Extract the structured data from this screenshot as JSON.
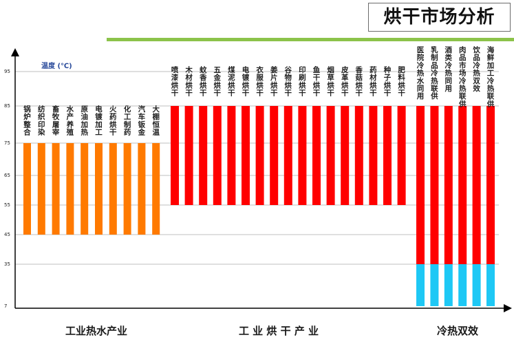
{
  "title": "烘干市场分析",
  "chart_data": {
    "type": "bar",
    "subtype": "floating-range",
    "ylabel": "温度 (℃)",
    "yticks": [
      7,
      35,
      45,
      55,
      65,
      75,
      85,
      95
    ],
    "grid": "horizontal",
    "groups": [
      {
        "name": "工业热水产业",
        "color": "#ff7a00",
        "items": [
          {
            "label": "锅炉整合",
            "min": 45,
            "max": 75
          },
          {
            "label": "纺织印染",
            "min": 45,
            "max": 75
          },
          {
            "label": "畜牧屠宰",
            "min": 45,
            "max": 75
          },
          {
            "label": "水产养殖",
            "min": 45,
            "max": 75
          },
          {
            "label": "原油加热",
            "min": 45,
            "max": 75
          },
          {
            "label": "电镀加工",
            "min": 45,
            "max": 75
          },
          {
            "label": "火药烘干",
            "min": 45,
            "max": 75
          },
          {
            "label": "化工制药",
            "min": 45,
            "max": 75
          },
          {
            "label": "汽车钣金",
            "min": 45,
            "max": 75
          },
          {
            "label": "大棚恒温",
            "min": 45,
            "max": 75
          }
        ]
      },
      {
        "name": "工 业 烘 干 产 业",
        "color": "#ff0000",
        "items": [
          {
            "label": "喷漆烘干",
            "min": 55,
            "max": 85
          },
          {
            "label": "木材烘干",
            "min": 55,
            "max": 85
          },
          {
            "label": "蚊香烘干",
            "min": 55,
            "max": 85
          },
          {
            "label": "五金烘干",
            "min": 55,
            "max": 85
          },
          {
            "label": "煤泥烘干",
            "min": 55,
            "max": 85
          },
          {
            "label": "电镀烘干",
            "min": 55,
            "max": 85
          },
          {
            "label": "衣服烘干",
            "min": 55,
            "max": 85
          },
          {
            "label": "姜片烘干",
            "min": 55,
            "max": 85
          },
          {
            "label": "谷物烘干",
            "min": 55,
            "max": 85
          },
          {
            "label": "印刷烘干",
            "min": 55,
            "max": 85
          },
          {
            "label": "鱼干烘干",
            "min": 55,
            "max": 85
          },
          {
            "label": "烟草烘干",
            "min": 55,
            "max": 85
          },
          {
            "label": "皮革烘干",
            "min": 55,
            "max": 85
          },
          {
            "label": "香菇烘干",
            "min": 55,
            "max": 85
          },
          {
            "label": "药材烘干",
            "min": 55,
            "max": 85
          },
          {
            "label": "种子烘干",
            "min": 55,
            "max": 85
          },
          {
            "label": "肥料烘干",
            "min": 55,
            "max": 85
          }
        ]
      },
      {
        "name": "冷热双效",
        "color": "#ff0000",
        "cold_color": "#1ec8f5",
        "items": [
          {
            "label": "医院冷热水同用",
            "min": 7,
            "split": 35,
            "max": 85
          },
          {
            "label": "乳制品冷热联供",
            "min": 7,
            "split": 35,
            "max": 85
          },
          {
            "label": "酒类冷热同用",
            "min": 7,
            "split": 35,
            "max": 85
          },
          {
            "label": "肉品市场冷热联供",
            "min": 7,
            "split": 35,
            "max": 85
          },
          {
            "label": "饮品冷热双效",
            "min": 7,
            "split": 35,
            "max": 85
          },
          {
            "label": "海鲜加工冷热联供",
            "min": 7,
            "split": 35,
            "max": 85
          }
        ]
      }
    ]
  }
}
